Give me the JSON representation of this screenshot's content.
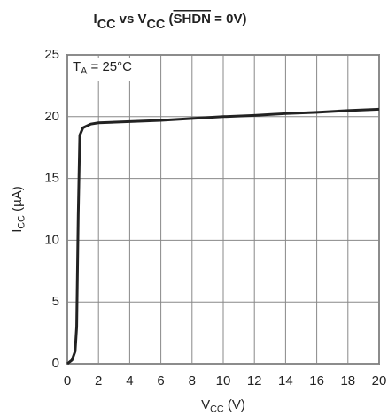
{
  "chart_data": {
    "type": "line",
    "title": [
      {
        "text": "I"
      },
      {
        "text": "CC",
        "sub": true
      },
      {
        "text": " vs V"
      },
      {
        "text": "CC",
        "sub": true
      },
      {
        "text": " ("
      },
      {
        "text": "SHDN",
        "overline": true
      },
      {
        "text": " = 0V)"
      }
    ],
    "xlabel": [
      {
        "text": "V"
      },
      {
        "text": "CC",
        "sub": true
      },
      {
        "text": " (V)"
      }
    ],
    "ylabel": [
      {
        "text": "I"
      },
      {
        "text": "CC",
        "sub": true
      },
      {
        "text": " (µA)"
      }
    ],
    "annotation": [
      {
        "text": "T"
      },
      {
        "text": "A",
        "sub": true
      },
      {
        "text": " = 25°C"
      }
    ],
    "x": [
      0,
      0.3,
      0.5,
      0.6,
      0.7,
      0.8,
      1.0,
      1.5,
      2,
      4,
      6,
      8,
      10,
      12,
      14,
      16,
      18,
      20
    ],
    "series": [
      {
        "color": "#222222",
        "values": [
          0,
          0.3,
          1,
          3,
          12,
          18.5,
          19.1,
          19.4,
          19.5,
          19.6,
          19.7,
          19.85,
          20.0,
          20.1,
          20.25,
          20.35,
          20.5,
          20.6
        ]
      }
    ],
    "xlim": [
      0,
      20
    ],
    "xticks": [
      0,
      2,
      4,
      6,
      8,
      10,
      12,
      14,
      16,
      18,
      20
    ],
    "ylim": [
      0,
      25
    ],
    "yticks": [
      0,
      5,
      10,
      15,
      20,
      25
    ],
    "grid": true
  }
}
